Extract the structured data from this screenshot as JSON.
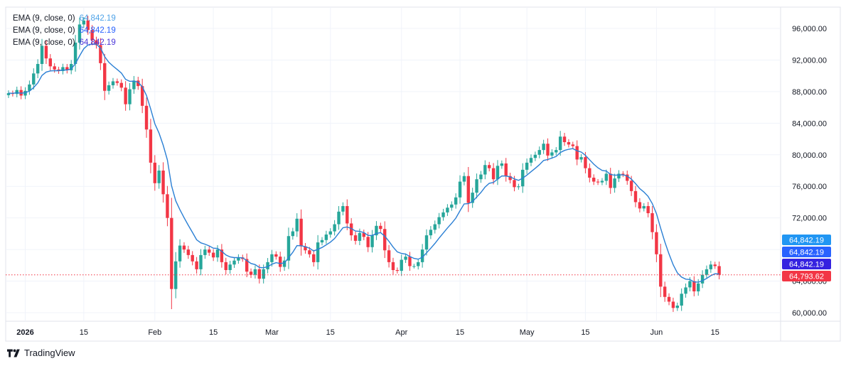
{
  "colors": {
    "up": "#26a69a",
    "down": "#f23645",
    "ema": "#2a7fd4",
    "grid": "#f0f3fa",
    "text": "#131722",
    "badge_ema_1": "#2196f3",
    "badge_ema_2": "#2962ff",
    "badge_ema_3": "#3522e0",
    "badge_price": "#f23645"
  },
  "legend": [
    {
      "label": "EMA (9, close, 0)",
      "value": "64,842.19",
      "color": "#4fa3e8"
    },
    {
      "label": "EMA (9, close, 0)",
      "value": "64,842.19",
      "color": "#2962ff"
    },
    {
      "label": "EMA (9, close, 0)",
      "value": "64,842.19",
      "color": "#4a35d8"
    }
  ],
  "price_badges": [
    {
      "text": "64,842.19",
      "color": "#2196f3"
    },
    {
      "text": "64,842.19",
      "color": "#2962ff"
    },
    {
      "text": "64,842.19",
      "color": "#3522e0"
    },
    {
      "text": "64,793.62",
      "color": "#f23645"
    }
  ],
  "brand": "TradingView",
  "chart_data": {
    "type": "candlestick",
    "series_name": "EMA (9, close, 0)",
    "last_price": 64793.62,
    "ema_last": 64842.19,
    "ylim": [
      58000,
      99000
    ],
    "y_ticks": [
      60000,
      64000,
      68000,
      72000,
      76000,
      80000,
      84000,
      88000,
      92000,
      96000
    ],
    "y_tick_labels": [
      "60,000.00",
      "64,000.00",
      "68,000.00",
      "72,000.00",
      "76,000.00",
      "80,000.00",
      "84,000.00",
      "88,000.00",
      "92,000.00",
      "96,000.00"
    ],
    "x_ticks": [
      {
        "label": "2026",
        "index": 4,
        "bold": true
      },
      {
        "label": "15",
        "index": 18
      },
      {
        "label": "Feb",
        "index": 35
      },
      {
        "label": "15",
        "index": 49
      },
      {
        "label": "Mar",
        "index": 63
      },
      {
        "label": "15",
        "index": 77
      },
      {
        "label": "Apr",
        "index": 94
      },
      {
        "label": "15",
        "index": 108
      },
      {
        "label": "May",
        "index": 124
      },
      {
        "label": "15",
        "index": 138
      },
      {
        "label": "Jun",
        "index": 155
      },
      {
        "label": "15",
        "index": 169
      }
    ],
    "closes": [
      87800,
      87700,
      88200,
      87500,
      88100,
      88900,
      90300,
      91500,
      93800,
      92200,
      91200,
      90800,
      90600,
      91100,
      90700,
      91500,
      94200,
      96500,
      97000,
      95800,
      94500,
      93900,
      91600,
      88100,
      88800,
      89300,
      89100,
      88500,
      86400,
      88300,
      89400,
      88700,
      86200,
      83200,
      79000,
      76400,
      78000,
      75000,
      72000,
      63000,
      66500,
      68500,
      68000,
      67300,
      66500,
      65500,
      67300,
      68000,
      67600,
      67000,
      68000,
      66400,
      65400,
      66100,
      66600,
      67000,
      66800,
      65200,
      64800,
      65500,
      64300,
      65500,
      66400,
      67400,
      67100,
      65800,
      66600,
      69700,
      70300,
      71900,
      68400,
      67900,
      67400,
      66400,
      68900,
      69200,
      69900,
      70300,
      71200,
      72800,
      73500,
      71300,
      69800,
      69100,
      70100,
      69600,
      68300,
      69800,
      71000,
      70600,
      67900,
      66400,
      65400,
      65300,
      66700,
      67100,
      65900,
      65900,
      66400,
      68000,
      69800,
      70500,
      71200,
      72100,
      72700,
      73300,
      73700,
      74600,
      76600,
      77300,
      73900,
      75200,
      76900,
      77500,
      78700,
      78300,
      76900,
      78600,
      78900,
      77300,
      76800,
      75900,
      76000,
      78100,
      79000,
      79600,
      80000,
      80600,
      81400,
      79900,
      80300,
      80600,
      82300,
      81600,
      81300,
      81100,
      79400,
      79700,
      78300,
      77100,
      76600,
      76500,
      76700,
      77600,
      75800,
      77000,
      77600,
      77500,
      76700,
      75400,
      74000,
      73200,
      73500,
      72600,
      70200,
      67400,
      63300,
      62000,
      61400,
      60600,
      60900,
      62400,
      63200,
      64000,
      62700,
      63700,
      64800,
      65500,
      66100,
      65900,
      64800
    ]
  }
}
